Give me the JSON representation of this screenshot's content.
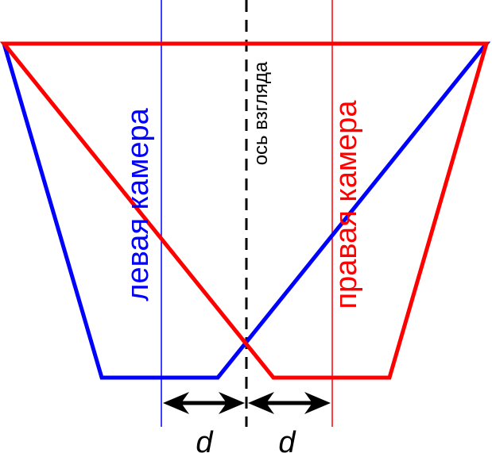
{
  "labels": {
    "left_camera": "левая камера",
    "right_camera": "правая камера",
    "view_axis": "ось взгляда",
    "offset_left": "d",
    "offset_right": "d"
  },
  "colors": {
    "left_camera": "#0000ff",
    "right_camera": "#ff0000",
    "axis": "#000000",
    "background": "#ffffff"
  }
}
